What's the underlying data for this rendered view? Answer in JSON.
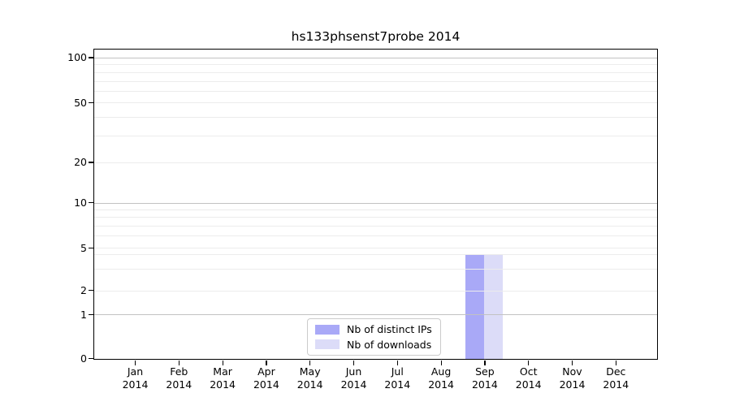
{
  "title": "hs133phsenst7probe 2014",
  "chart_data": {
    "type": "bar",
    "title": "hs133phsenst7probe 2014",
    "categories": [
      "Jan 2014",
      "Feb 2014",
      "Mar 2014",
      "Apr 2014",
      "May 2014",
      "Jun 2014",
      "Jul 2014",
      "Aug 2014",
      "Sep 2014",
      "Oct 2014",
      "Nov 2014",
      "Dec 2014"
    ],
    "series": [
      {
        "name": "Nb of distinct IPs",
        "color": "#a9a9f7",
        "values": [
          0,
          0,
          0,
          0,
          0,
          0,
          0,
          0,
          4,
          0,
          0,
          0
        ]
      },
      {
        "name": "Nb of downloads",
        "color": "#dcdcf8",
        "values": [
          0,
          0,
          0,
          0,
          0,
          0,
          0,
          0,
          4,
          0,
          0,
          0
        ]
      }
    ],
    "xlabel": "",
    "ylabel": "",
    "yscale": "log-like",
    "y_ticks": [
      0,
      1,
      2,
      5,
      10,
      20,
      50,
      100
    ],
    "y_decade_ticks": [
      1,
      10,
      100
    ],
    "y_minor_gridlines": [
      3,
      4,
      6,
      7,
      8,
      9,
      30,
      40,
      60,
      70,
      80,
      90
    ],
    "ylim": [
      0,
      115
    ],
    "grid": "horizontal",
    "legend_position": "lower-center"
  },
  "colors": {
    "background": "#ffffff",
    "axis": "#000000",
    "grid_major": "#c2c2c2",
    "grid_minor": "#ececec",
    "legend_border": "#cbcbcb",
    "bar_distinct_ips": "#a9a9f7",
    "bar_downloads": "#dcdcf8"
  }
}
